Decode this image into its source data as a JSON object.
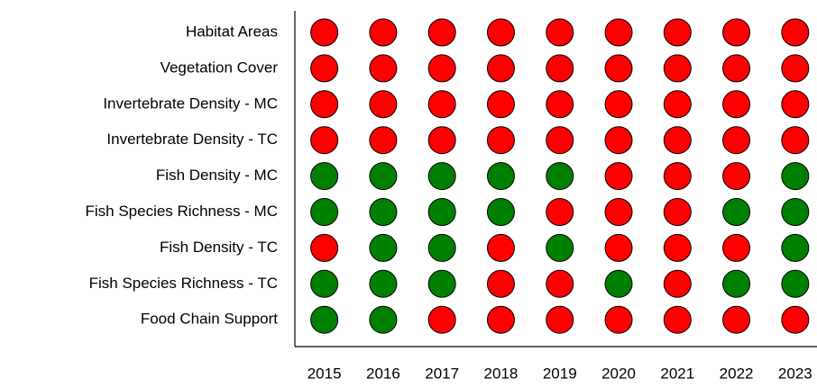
{
  "chart_data": {
    "type": "status-grid",
    "categories": [
      "Habitat Areas",
      "Vegetation Cover",
      "Invertebrate Density - MC",
      "Invertebrate Density - TC",
      "Fish Density - MC",
      "Fish Species Richness - MC",
      "Fish Density - TC",
      "Fish Species Richness - TC",
      "Food Chain Support"
    ],
    "x": [
      2015,
      2016,
      2017,
      2018,
      2019,
      2020,
      2021,
      2022,
      2023
    ],
    "xlim": [
      2014.5,
      2023.37
    ],
    "cell_colors": [
      [
        "#ff0000",
        "#ff0000",
        "#ff0000",
        "#ff0000",
        "#ff0000",
        "#ff0000",
        "#ff0000",
        "#ff0000",
        "#ff0000"
      ],
      [
        "#ff0000",
        "#ff0000",
        "#ff0000",
        "#ff0000",
        "#ff0000",
        "#ff0000",
        "#ff0000",
        "#ff0000",
        "#ff0000"
      ],
      [
        "#ff0000",
        "#ff0000",
        "#ff0000",
        "#ff0000",
        "#ff0000",
        "#ff0000",
        "#ff0000",
        "#ff0000",
        "#ff0000"
      ],
      [
        "#ff0000",
        "#ff0000",
        "#ff0000",
        "#ff0000",
        "#ff0000",
        "#ff0000",
        "#ff0000",
        "#ff0000",
        "#ff0000"
      ],
      [
        "#008000",
        "#008000",
        "#008000",
        "#008000",
        "#008000",
        "#ff0000",
        "#ff0000",
        "#ff0000",
        "#008000"
      ],
      [
        "#008000",
        "#008000",
        "#008000",
        "#008000",
        "#ff0000",
        "#ff0000",
        "#ff0000",
        "#008000",
        "#008000"
      ],
      [
        "#ff0000",
        "#008000",
        "#008000",
        "#ff0000",
        "#008000",
        "#ff0000",
        "#ff0000",
        "#ff0000",
        "#008000"
      ],
      [
        "#008000",
        "#008000",
        "#008000",
        "#ff0000",
        "#ff0000",
        "#008000",
        "#ff0000",
        "#008000",
        "#008000"
      ],
      [
        "#008000",
        "#008000",
        "#ff0000",
        "#ff0000",
        "#ff0000",
        "#ff0000",
        "#ff0000",
        "#ff0000",
        "#ff0000"
      ]
    ]
  }
}
